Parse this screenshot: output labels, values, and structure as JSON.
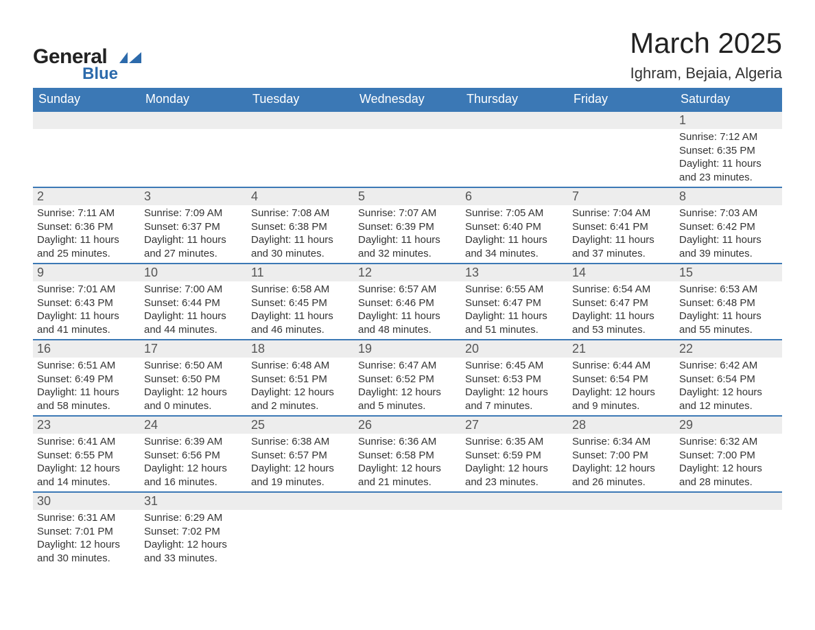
{
  "brand": {
    "name_part1": "General",
    "name_part2": "Blue",
    "text_color": "#222222",
    "accent_color": "#2c6aab",
    "icon_color": "#2c6aab"
  },
  "header": {
    "month_title": "March 2025",
    "location": "Ighram, Bejaia, Algeria"
  },
  "colors": {
    "header_bg": "#3b78b5",
    "header_text": "#ffffff",
    "daynum_bg": "#ededed",
    "row_border": "#3b78b5",
    "body_text": "#333333",
    "page_bg": "#ffffff"
  },
  "typography": {
    "month_title_fontsize": 42,
    "location_fontsize": 22,
    "weekday_fontsize": 18,
    "daynum_fontsize": 18,
    "detail_fontsize": 15,
    "font_family": "Arial"
  },
  "calendar": {
    "type": "table",
    "weekdays": [
      "Sunday",
      "Monday",
      "Tuesday",
      "Wednesday",
      "Thursday",
      "Friday",
      "Saturday"
    ],
    "weeks": [
      [
        null,
        null,
        null,
        null,
        null,
        null,
        {
          "day": "1",
          "sunrise": "Sunrise: 7:12 AM",
          "sunset": "Sunset: 6:35 PM",
          "daylight1": "Daylight: 11 hours",
          "daylight2": "and 23 minutes."
        }
      ],
      [
        {
          "day": "2",
          "sunrise": "Sunrise: 7:11 AM",
          "sunset": "Sunset: 6:36 PM",
          "daylight1": "Daylight: 11 hours",
          "daylight2": "and 25 minutes."
        },
        {
          "day": "3",
          "sunrise": "Sunrise: 7:09 AM",
          "sunset": "Sunset: 6:37 PM",
          "daylight1": "Daylight: 11 hours",
          "daylight2": "and 27 minutes."
        },
        {
          "day": "4",
          "sunrise": "Sunrise: 7:08 AM",
          "sunset": "Sunset: 6:38 PM",
          "daylight1": "Daylight: 11 hours",
          "daylight2": "and 30 minutes."
        },
        {
          "day": "5",
          "sunrise": "Sunrise: 7:07 AM",
          "sunset": "Sunset: 6:39 PM",
          "daylight1": "Daylight: 11 hours",
          "daylight2": "and 32 minutes."
        },
        {
          "day": "6",
          "sunrise": "Sunrise: 7:05 AM",
          "sunset": "Sunset: 6:40 PM",
          "daylight1": "Daylight: 11 hours",
          "daylight2": "and 34 minutes."
        },
        {
          "day": "7",
          "sunrise": "Sunrise: 7:04 AM",
          "sunset": "Sunset: 6:41 PM",
          "daylight1": "Daylight: 11 hours",
          "daylight2": "and 37 minutes."
        },
        {
          "day": "8",
          "sunrise": "Sunrise: 7:03 AM",
          "sunset": "Sunset: 6:42 PM",
          "daylight1": "Daylight: 11 hours",
          "daylight2": "and 39 minutes."
        }
      ],
      [
        {
          "day": "9",
          "sunrise": "Sunrise: 7:01 AM",
          "sunset": "Sunset: 6:43 PM",
          "daylight1": "Daylight: 11 hours",
          "daylight2": "and 41 minutes."
        },
        {
          "day": "10",
          "sunrise": "Sunrise: 7:00 AM",
          "sunset": "Sunset: 6:44 PM",
          "daylight1": "Daylight: 11 hours",
          "daylight2": "and 44 minutes."
        },
        {
          "day": "11",
          "sunrise": "Sunrise: 6:58 AM",
          "sunset": "Sunset: 6:45 PM",
          "daylight1": "Daylight: 11 hours",
          "daylight2": "and 46 minutes."
        },
        {
          "day": "12",
          "sunrise": "Sunrise: 6:57 AM",
          "sunset": "Sunset: 6:46 PM",
          "daylight1": "Daylight: 11 hours",
          "daylight2": "and 48 minutes."
        },
        {
          "day": "13",
          "sunrise": "Sunrise: 6:55 AM",
          "sunset": "Sunset: 6:47 PM",
          "daylight1": "Daylight: 11 hours",
          "daylight2": "and 51 minutes."
        },
        {
          "day": "14",
          "sunrise": "Sunrise: 6:54 AM",
          "sunset": "Sunset: 6:47 PM",
          "daylight1": "Daylight: 11 hours",
          "daylight2": "and 53 minutes."
        },
        {
          "day": "15",
          "sunrise": "Sunrise: 6:53 AM",
          "sunset": "Sunset: 6:48 PM",
          "daylight1": "Daylight: 11 hours",
          "daylight2": "and 55 minutes."
        }
      ],
      [
        {
          "day": "16",
          "sunrise": "Sunrise: 6:51 AM",
          "sunset": "Sunset: 6:49 PM",
          "daylight1": "Daylight: 11 hours",
          "daylight2": "and 58 minutes."
        },
        {
          "day": "17",
          "sunrise": "Sunrise: 6:50 AM",
          "sunset": "Sunset: 6:50 PM",
          "daylight1": "Daylight: 12 hours",
          "daylight2": "and 0 minutes."
        },
        {
          "day": "18",
          "sunrise": "Sunrise: 6:48 AM",
          "sunset": "Sunset: 6:51 PM",
          "daylight1": "Daylight: 12 hours",
          "daylight2": "and 2 minutes."
        },
        {
          "day": "19",
          "sunrise": "Sunrise: 6:47 AM",
          "sunset": "Sunset: 6:52 PM",
          "daylight1": "Daylight: 12 hours",
          "daylight2": "and 5 minutes."
        },
        {
          "day": "20",
          "sunrise": "Sunrise: 6:45 AM",
          "sunset": "Sunset: 6:53 PM",
          "daylight1": "Daylight: 12 hours",
          "daylight2": "and 7 minutes."
        },
        {
          "day": "21",
          "sunrise": "Sunrise: 6:44 AM",
          "sunset": "Sunset: 6:54 PM",
          "daylight1": "Daylight: 12 hours",
          "daylight2": "and 9 minutes."
        },
        {
          "day": "22",
          "sunrise": "Sunrise: 6:42 AM",
          "sunset": "Sunset: 6:54 PM",
          "daylight1": "Daylight: 12 hours",
          "daylight2": "and 12 minutes."
        }
      ],
      [
        {
          "day": "23",
          "sunrise": "Sunrise: 6:41 AM",
          "sunset": "Sunset: 6:55 PM",
          "daylight1": "Daylight: 12 hours",
          "daylight2": "and 14 minutes."
        },
        {
          "day": "24",
          "sunrise": "Sunrise: 6:39 AM",
          "sunset": "Sunset: 6:56 PM",
          "daylight1": "Daylight: 12 hours",
          "daylight2": "and 16 minutes."
        },
        {
          "day": "25",
          "sunrise": "Sunrise: 6:38 AM",
          "sunset": "Sunset: 6:57 PM",
          "daylight1": "Daylight: 12 hours",
          "daylight2": "and 19 minutes."
        },
        {
          "day": "26",
          "sunrise": "Sunrise: 6:36 AM",
          "sunset": "Sunset: 6:58 PM",
          "daylight1": "Daylight: 12 hours",
          "daylight2": "and 21 minutes."
        },
        {
          "day": "27",
          "sunrise": "Sunrise: 6:35 AM",
          "sunset": "Sunset: 6:59 PM",
          "daylight1": "Daylight: 12 hours",
          "daylight2": "and 23 minutes."
        },
        {
          "day": "28",
          "sunrise": "Sunrise: 6:34 AM",
          "sunset": "Sunset: 7:00 PM",
          "daylight1": "Daylight: 12 hours",
          "daylight2": "and 26 minutes."
        },
        {
          "day": "29",
          "sunrise": "Sunrise: 6:32 AM",
          "sunset": "Sunset: 7:00 PM",
          "daylight1": "Daylight: 12 hours",
          "daylight2": "and 28 minutes."
        }
      ],
      [
        {
          "day": "30",
          "sunrise": "Sunrise: 6:31 AM",
          "sunset": "Sunset: 7:01 PM",
          "daylight1": "Daylight: 12 hours",
          "daylight2": "and 30 minutes."
        },
        {
          "day": "31",
          "sunrise": "Sunrise: 6:29 AM",
          "sunset": "Sunset: 7:02 PM",
          "daylight1": "Daylight: 12 hours",
          "daylight2": "and 33 minutes."
        },
        null,
        null,
        null,
        null,
        null
      ]
    ]
  }
}
